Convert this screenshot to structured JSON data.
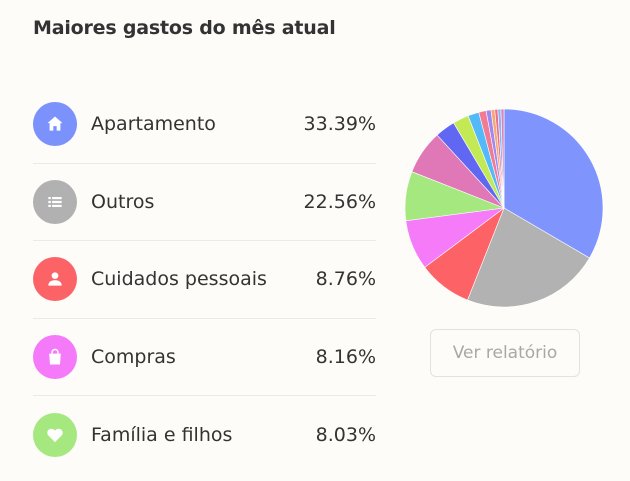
{
  "title": "Maiores gastos do mês atual",
  "categories": [
    {
      "label": "Apartamento",
      "percent": "33.39%",
      "icon": "home-icon",
      "color": "#7b91fb"
    },
    {
      "label": "Outros",
      "percent": "22.56%",
      "icon": "list-icon",
      "color": "#b1b1b1"
    },
    {
      "label": "Cuidados pessoais",
      "percent": "8.76%",
      "icon": "person-icon",
      "color": "#fc6366"
    },
    {
      "label": "Compras",
      "percent": "8.16%",
      "icon": "shopping-bag-icon",
      "color": "#f57af9"
    },
    {
      "label": "Família e filhos",
      "percent": "8.03%",
      "icon": "heart-icon",
      "color": "#a6e880"
    }
  ],
  "report_button": {
    "label": "Ver relatório"
  },
  "chart_data": {
    "type": "pie",
    "slices": [
      {
        "value": 33.39,
        "color": "#7f95fd"
      },
      {
        "value": 22.56,
        "color": "#b2b2b2"
      },
      {
        "value": 8.76,
        "color": "#fd6366"
      },
      {
        "value": 8.16,
        "color": "#f57bf9"
      },
      {
        "value": 8.03,
        "color": "#a6e880"
      },
      {
        "value": 7.2,
        "color": "#e077b6"
      },
      {
        "value": 3.3,
        "color": "#6067f2"
      },
      {
        "value": 2.6,
        "color": "#c3ea55"
      },
      {
        "value": 1.8,
        "color": "#54b9f9"
      },
      {
        "value": 1.2,
        "color": "#f27b94"
      },
      {
        "value": 0.8,
        "color": "#9d88f4"
      },
      {
        "value": 0.6,
        "color": "#f5a872"
      },
      {
        "value": 0.5,
        "color": "#f06f86"
      },
      {
        "value": 0.5,
        "color": "#8ab3f8"
      },
      {
        "value": 0.5,
        "color": "#d687b9"
      }
    ]
  }
}
